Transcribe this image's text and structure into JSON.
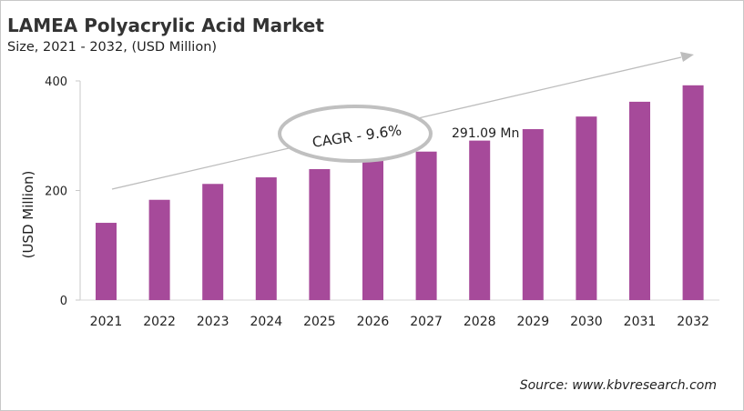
{
  "chart_data": {
    "type": "bar",
    "title": "LAMEA Polyacrylic Acid Market",
    "subtitle": "Size, 2021 - 2032, (USD Million)",
    "xlabel": "",
    "ylabel": "(USD Million)",
    "categories": [
      "2021",
      "2022",
      "2023",
      "2024",
      "2025",
      "2026",
      "2027",
      "2028",
      "2029",
      "2030",
      "2031",
      "2032"
    ],
    "values": [
      141,
      183,
      212,
      224,
      239,
      254,
      271,
      291.09,
      312,
      335,
      362,
      392
    ],
    "ylim": [
      0,
      400
    ],
    "yticks": [
      0,
      200,
      400
    ],
    "grid": false,
    "bar_color": "#A64A9A",
    "annotations": {
      "cagr": "CAGR - 9.6%",
      "data_label": "291.09 Mn"
    },
    "source": "Source: www.kbvresearch.com"
  }
}
